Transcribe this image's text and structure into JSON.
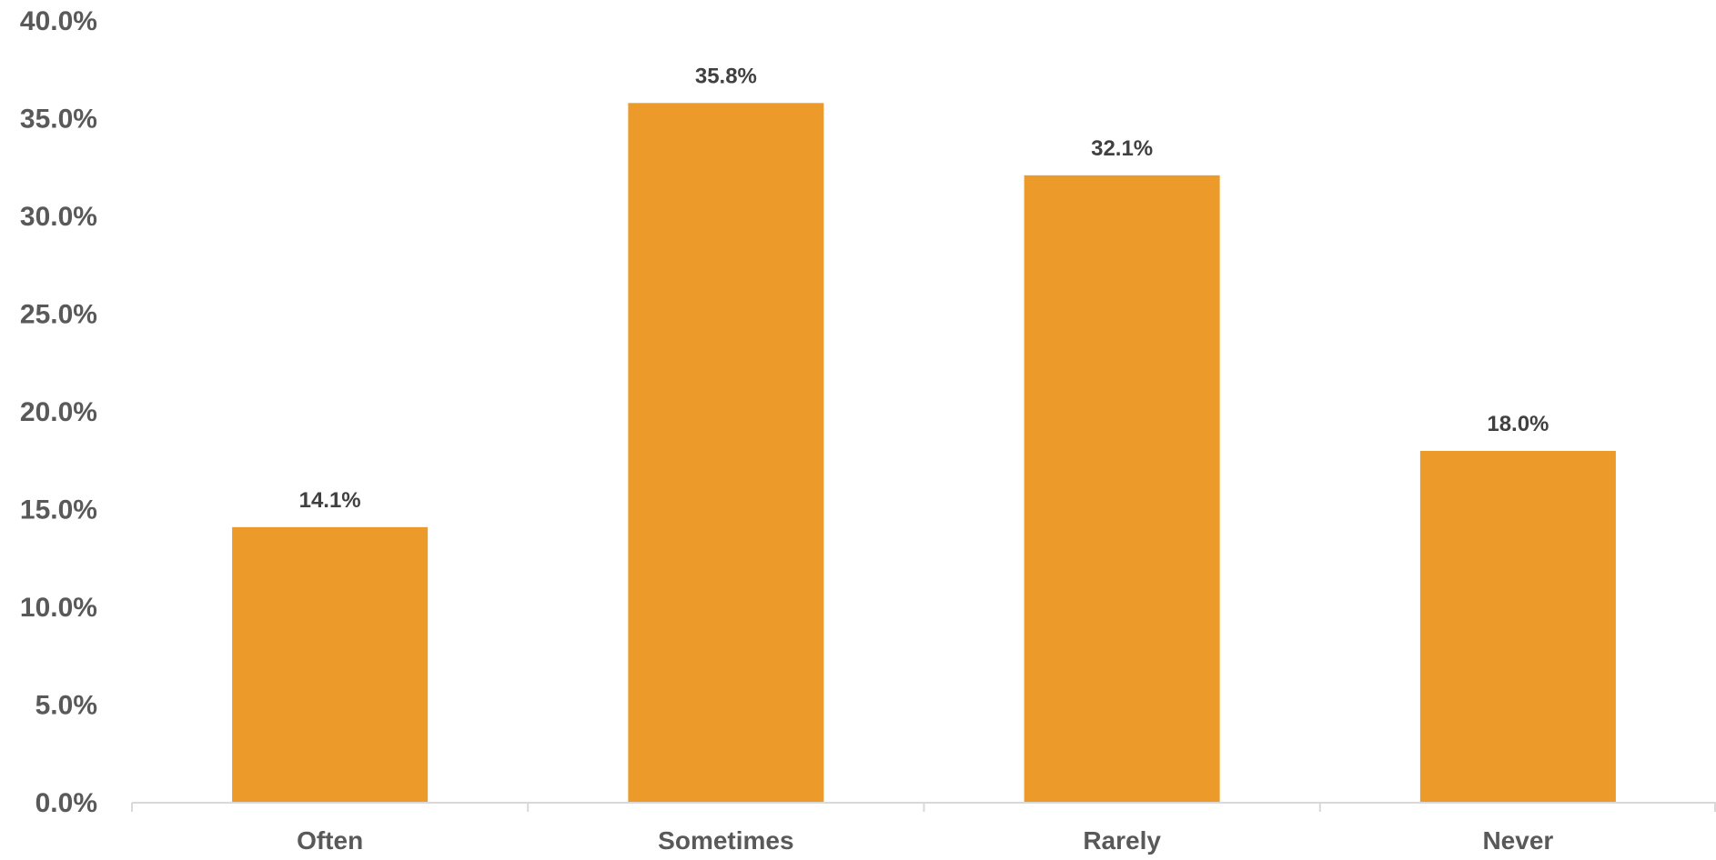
{
  "chart_data": {
    "type": "bar",
    "categories": [
      "Often",
      "Sometimes",
      "Rarely",
      "Never"
    ],
    "values": [
      14.1,
      35.8,
      32.1,
      18.0
    ],
    "data_labels": [
      "14.1%",
      "35.8%",
      "32.1%",
      "18.0%"
    ],
    "ylim": [
      0,
      40
    ],
    "yticks": [
      0,
      5,
      10,
      15,
      20,
      25,
      30,
      35,
      40
    ],
    "ytick_labels": [
      "0.0%",
      "5.0%",
      "10.0%",
      "15.0%",
      "20.0%",
      "25.0%",
      "30.0%",
      "35.0%",
      "40.0%"
    ],
    "grid": false,
    "legend": "none",
    "colors": {
      "bar": "#ec9a29",
      "axis": "#d9d9d9",
      "tick_text": "#595959",
      "data_label_text": "#404040"
    }
  }
}
